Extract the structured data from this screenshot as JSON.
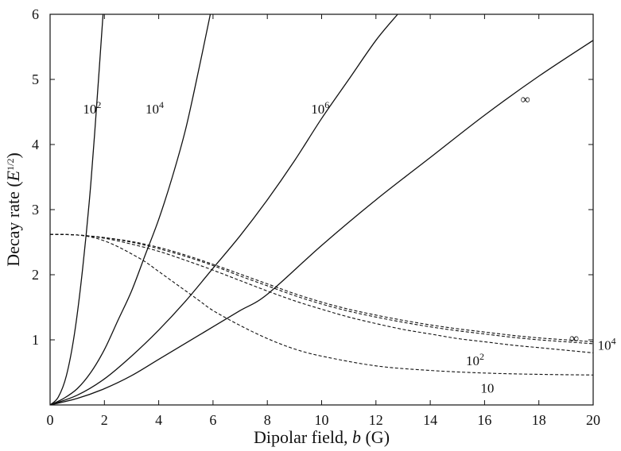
{
  "chart_data": {
    "type": "line",
    "xlabel": "Dipolar field, b (G)",
    "ylabel": "Decay rate (E^{1/2})",
    "xlim": [
      0,
      20
    ],
    "ylim": [
      0,
      6
    ],
    "x_ticks": [
      "0",
      "2",
      "4",
      "6",
      "8",
      "10",
      "12",
      "14",
      "16",
      "18",
      "20"
    ],
    "y_ticks": [
      "1",
      "2",
      "3",
      "4",
      "5",
      "6"
    ],
    "grid": false,
    "legend": "none",
    "series": [
      {
        "name": "10^2",
        "style": "solid",
        "x": [
          0,
          0.3,
          0.6,
          0.9,
          1.2,
          1.5,
          1.8,
          1.95
        ],
        "y": [
          0,
          0.12,
          0.45,
          1.1,
          2.1,
          3.4,
          5.1,
          6.0
        ]
      },
      {
        "name": "10^4",
        "style": "solid",
        "x": [
          0,
          0.5,
          1,
          1.5,
          2,
          2.5,
          3,
          3.5,
          4,
          4.5,
          5,
          5.5,
          5.9
        ],
        "y": [
          0,
          0.1,
          0.25,
          0.5,
          0.85,
          1.3,
          1.75,
          2.3,
          2.85,
          3.5,
          4.25,
          5.2,
          6.0
        ]
      },
      {
        "name": "10^6",
        "style": "solid",
        "x": [
          0,
          1,
          2,
          3,
          4,
          5,
          6,
          7,
          8,
          9,
          10,
          11,
          12,
          12.8
        ],
        "y": [
          0,
          0.15,
          0.4,
          0.75,
          1.15,
          1.6,
          2.1,
          2.6,
          3.15,
          3.75,
          4.4,
          5.0,
          5.6,
          6.0
        ]
      },
      {
        "name": "∞",
        "style": "solid",
        "x": [
          0,
          1,
          2,
          3,
          4,
          5,
          6,
          7,
          8,
          10,
          12,
          14,
          16,
          18,
          20
        ],
        "y": [
          0,
          0.1,
          0.25,
          0.45,
          0.7,
          0.95,
          1.2,
          1.45,
          1.7,
          2.45,
          3.15,
          3.8,
          4.45,
          5.05,
          5.6
        ]
      },
      {
        "name": "10",
        "style": "dashed",
        "x": [
          0,
          0.5,
          1,
          1.5,
          2,
          2.5,
          3,
          3.5,
          4,
          4.5,
          5,
          5.5,
          6,
          7,
          8,
          9,
          10,
          12,
          14,
          16,
          18,
          20
        ],
        "y": [
          2.62,
          2.62,
          2.61,
          2.58,
          2.52,
          2.43,
          2.32,
          2.2,
          2.05,
          1.9,
          1.75,
          1.6,
          1.45,
          1.22,
          1.02,
          0.86,
          0.75,
          0.6,
          0.53,
          0.49,
          0.47,
          0.46
        ]
      },
      {
        "name": "10^2",
        "style": "dashed",
        "x": [
          0,
          1,
          2,
          3,
          4,
          5,
          6,
          7,
          8,
          9,
          10,
          11,
          12,
          13,
          14,
          15,
          16,
          17,
          18,
          19,
          20
        ],
        "y": [
          2.62,
          2.61,
          2.56,
          2.47,
          2.36,
          2.22,
          2.07,
          1.91,
          1.75,
          1.6,
          1.47,
          1.35,
          1.25,
          1.16,
          1.09,
          1.02,
          0.97,
          0.92,
          0.88,
          0.84,
          0.8
        ]
      },
      {
        "name": "10^4",
        "style": "dashed",
        "x": [
          0,
          1,
          2,
          3,
          4,
          5,
          6,
          7,
          8,
          9,
          10,
          11,
          12,
          13,
          14,
          15,
          16,
          17,
          18,
          19,
          20
        ],
        "y": [
          2.62,
          2.61,
          2.57,
          2.5,
          2.4,
          2.28,
          2.14,
          1.98,
          1.83,
          1.68,
          1.55,
          1.44,
          1.35,
          1.27,
          1.2,
          1.14,
          1.09,
          1.04,
          1.0,
          0.97,
          0.94
        ]
      },
      {
        "name": "∞",
        "style": "dashed",
        "x": [
          0,
          1,
          2,
          3,
          4,
          5,
          6,
          7,
          8,
          9,
          10,
          11,
          12,
          13,
          14,
          15,
          16,
          17,
          18,
          19,
          20
        ],
        "y": [
          2.62,
          2.61,
          2.57,
          2.51,
          2.42,
          2.3,
          2.16,
          2.01,
          1.86,
          1.71,
          1.58,
          1.47,
          1.38,
          1.3,
          1.23,
          1.17,
          1.12,
          1.07,
          1.03,
          1.0,
          0.97
        ]
      }
    ],
    "annotations": [
      {
        "text": "10^2",
        "x": 1.55,
        "y": 4.55
      },
      {
        "text": "10^4",
        "x": 3.85,
        "y": 4.55
      },
      {
        "text": "10^6",
        "x": 9.95,
        "y": 4.55
      },
      {
        "text": "∞",
        "x": 17.5,
        "y": 4.7
      },
      {
        "text": "∞",
        "x": 19.3,
        "y": 1.03
      },
      {
        "text": "10^4",
        "x": 20.5,
        "y": 0.92
      },
      {
        "text": "10^2",
        "x": 15.65,
        "y": 0.68
      },
      {
        "text": "10",
        "x": 16.1,
        "y": 0.26
      }
    ]
  }
}
